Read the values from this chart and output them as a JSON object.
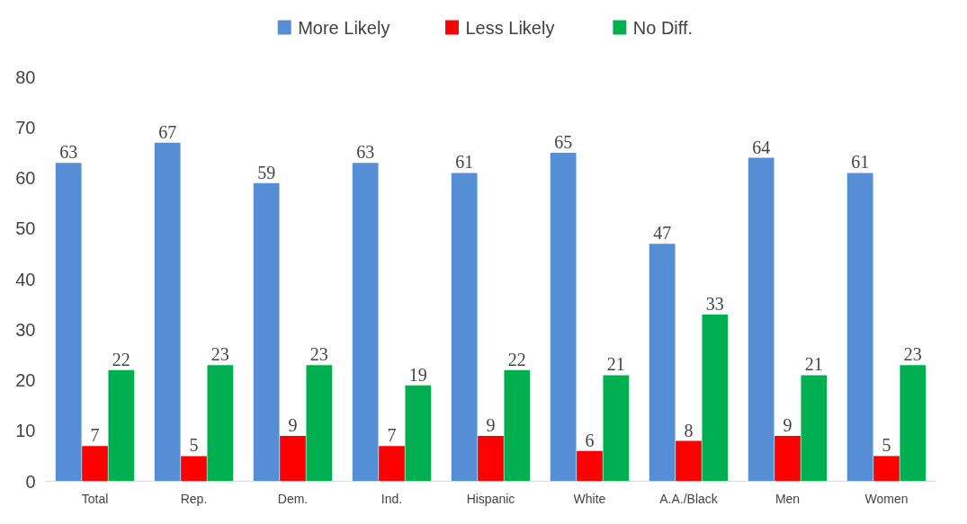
{
  "chart_data": {
    "type": "bar",
    "categories": [
      "Total",
      "Rep.",
      "Dem.",
      "Ind.",
      "Hispanic",
      "White",
      "A.A./Black",
      "Men",
      "Women"
    ],
    "series": [
      {
        "name": "More Likely",
        "color": "#558ed5",
        "values": [
          63,
          67,
          59,
          63,
          61,
          65,
          47,
          64,
          61
        ]
      },
      {
        "name": "Less Likely",
        "color": "#ff0000",
        "values": [
          7,
          5,
          9,
          7,
          9,
          6,
          8,
          9,
          5
        ]
      },
      {
        "name": "No Diff.",
        "color": "#00b050",
        "values": [
          22,
          23,
          23,
          19,
          22,
          21,
          33,
          21,
          23
        ]
      }
    ],
    "ylim": [
      0,
      80
    ],
    "yticks": [
      0,
      10,
      20,
      30,
      40,
      50,
      60,
      70,
      80
    ],
    "data_labels": true,
    "legend": "top",
    "grid": false
  }
}
